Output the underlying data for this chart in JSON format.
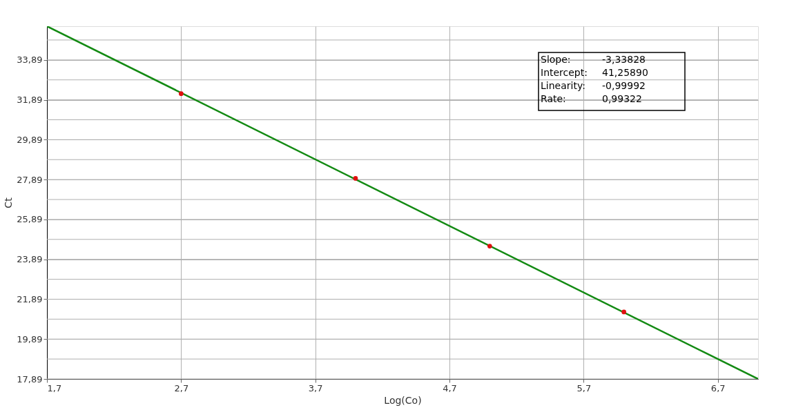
{
  "chart_data": {
    "type": "scatter",
    "xlabel": "Log(Co)",
    "ylabel": "Ct",
    "xlim": [
      1.7,
      7.0
    ],
    "ylim": [
      17.89,
      35.58
    ],
    "xticks": [
      {
        "value": 1.7,
        "label": "1,7"
      },
      {
        "value": 2.7,
        "label": "2,7"
      },
      {
        "value": 3.7,
        "label": "3,7"
      },
      {
        "value": 4.7,
        "label": "4,7"
      },
      {
        "value": 5.7,
        "label": "5,7"
      },
      {
        "value": 6.7,
        "label": "6,7"
      }
    ],
    "yticks": [
      {
        "value": 17.89,
        "label": "17,89"
      },
      {
        "value": 18.89,
        "label": null
      },
      {
        "value": 19.89,
        "label": "19,89"
      },
      {
        "value": 20.89,
        "label": null
      },
      {
        "value": 21.89,
        "label": "21,89"
      },
      {
        "value": 22.89,
        "label": null
      },
      {
        "value": 23.89,
        "label": "23,89"
      },
      {
        "value": 24.89,
        "label": null
      },
      {
        "value": 25.89,
        "label": "25,89"
      },
      {
        "value": 26.89,
        "label": null
      },
      {
        "value": 27.89,
        "label": "27,89"
      },
      {
        "value": 28.89,
        "label": null
      },
      {
        "value": 29.89,
        "label": "29,89"
      },
      {
        "value": 30.89,
        "label": null
      },
      {
        "value": 31.89,
        "label": "31,89"
      },
      {
        "value": 32.89,
        "label": null
      },
      {
        "value": 33.89,
        "label": "33,89"
      },
      {
        "value": 34.89,
        "label": null
      }
    ],
    "grid": true,
    "series": [
      {
        "type": "line",
        "color": "#138a13",
        "x": [
          1.7,
          7.0
        ],
        "values": [
          35.58,
          17.89
        ],
        "line_style": "solid",
        "marker": "none"
      },
      {
        "color": "#e01010",
        "marker": "circle",
        "x": [
          2.7,
          4.0,
          5.0,
          6.0
        ],
        "values": [
          32.2,
          27.95,
          24.55,
          21.25
        ]
      }
    ],
    "annotations": [
      "Slope: -3,33828",
      "Intercept: 41,25890",
      "Linearity: -0,99992",
      "Rate: 0,99322"
    ]
  }
}
